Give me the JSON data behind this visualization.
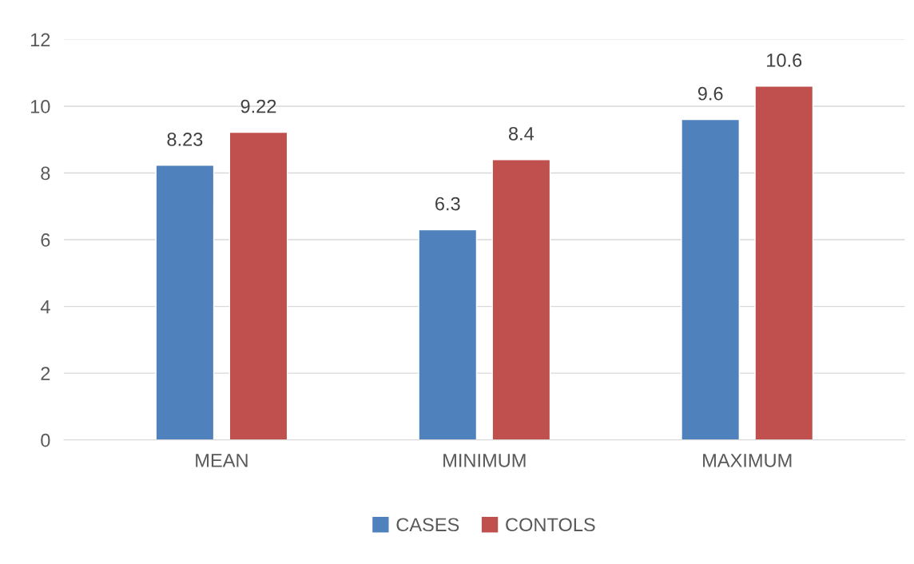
{
  "chart_data": {
    "type": "bar",
    "categories": [
      "MEAN",
      "MINIMUM",
      "MAXIMUM"
    ],
    "series": [
      {
        "name": "CASES",
        "color": "#4f81bd",
        "values": [
          8.23,
          6.3,
          9.6
        ]
      },
      {
        "name": "CONTOLS",
        "color": "#c0504d",
        "values": [
          9.22,
          8.4,
          10.6
        ]
      }
    ],
    "ylim": [
      0,
      12
    ],
    "yticks": [
      0,
      2,
      4,
      6,
      8,
      10,
      12
    ],
    "grid": "y",
    "legend": "bottom",
    "data_labels": true
  }
}
